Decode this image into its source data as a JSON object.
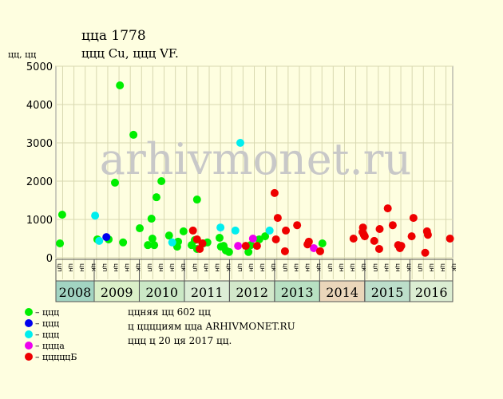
{
  "chart_data": {
    "type": "scatter",
    "title": "цца 1778",
    "subtitle": "ццц Cu, ццц VF.",
    "y_label": "цц, цц",
    "watermark": "arhivmonet.ru",
    "xlim": [
      2008.15,
      2016.95
    ],
    "xticks": [
      2009,
      2010,
      2011,
      2012,
      2013,
      2014,
      2015,
      2016
    ],
    "x_categories": [
      "2008",
      "2009",
      "2010",
      "2011",
      "2012",
      "2013",
      "2014",
      "2015",
      "2016"
    ],
    "category_colors": [
      "#a2d4c2",
      "#dbf0c8",
      "#cbe8c6",
      "#dcedd6",
      "#d2e8ca",
      "#b8e0c2",
      "#ead6ba",
      "#bcdeca",
      "#dbedd2"
    ],
    "period_labels": [
      "цп",
      "цн",
      "цн",
      "цк"
    ],
    "ylim": [
      0,
      5000
    ],
    "yticks": [
      0,
      1000,
      2000,
      3000,
      4000,
      5000
    ],
    "grid": true,
    "series": [
      {
        "name": "– ццц",
        "color": "#00ee00",
        "x": [
          2008.24,
          2008.29,
          2009.07,
          2009.32,
          2009.46,
          2009.57,
          2009.64,
          2009.87,
          2010.01,
          2010.19,
          2010.27,
          2010.29,
          2010.33,
          2010.38,
          2010.49,
          2010.66,
          2010.84,
          2010.86,
          2010.98,
          2011.16,
          2011.23,
          2011.28,
          2011.28,
          2011.42,
          2011.51,
          2011.78,
          2011.81,
          2011.87,
          2011.92,
          2011.99,
          2012.42,
          2012.47,
          2012.66,
          2012.79,
          2014.06
        ],
        "values": [
          375,
          1125,
          480,
          480,
          1960,
          4500,
          400,
          3210,
          770,
          330,
          1020,
          500,
          330,
          1580,
          2000,
          580,
          290,
          420,
          690,
          330,
          460,
          230,
          1520,
          375,
          400,
          520,
          290,
          310,
          190,
          150,
          150,
          330,
          480,
          560,
          375
        ]
      },
      {
        "name": "– ццц",
        "color": "#0000ee",
        "x": [
          2009.27
        ],
        "values": [
          540
        ]
      },
      {
        "name": "– ццц",
        "color": "#00eeee",
        "x": [
          2009.02,
          2009.11,
          2010.73,
          2011.8,
          2012.13,
          2012.24,
          2012.89
        ],
        "values": [
          1100,
          440,
          400,
          790,
          710,
          3000,
          710
        ]
      },
      {
        "name": "– ццца",
        "color": "#ee00ee",
        "x": [
          2012.19,
          2012.52,
          2013.87
        ],
        "values": [
          310,
          500,
          250
        ]
      },
      {
        "name": "– цццццБ",
        "color": "#ee0000",
        "x": [
          2011.19,
          2011.28,
          2011.34,
          2011.4,
          2012.36,
          2012.61,
          2013.0,
          2013.03,
          2013.07,
          2013.23,
          2013.25,
          2013.5,
          2013.73,
          2013.76,
          2014.01,
          2014.75,
          2014.95,
          2014.96,
          2014.98,
          2015.0,
          2015.21,
          2015.32,
          2015.33,
          2015.51,
          2015.62,
          2015.74,
          2015.78,
          2015.81,
          2016.04,
          2016.08,
          2016.34,
          2016.38,
          2016.4,
          2016.89
        ],
        "values": [
          710,
          480,
          230,
          375,
          310,
          310,
          1690,
          480,
          1040,
          170,
          710,
          850,
          350,
          420,
          170,
          500,
          670,
          790,
          600,
          560,
          440,
          230,
          750,
          1290,
          850,
          330,
          250,
          310,
          560,
          1040,
          130,
          690,
          600,
          500
        ]
      }
    ],
    "notes": [
      "ццняя цц 602 цц",
      "ц цццциям цца ARHIVMONET.RU",
      "ццц ц 20 ця 2017 цц."
    ]
  }
}
